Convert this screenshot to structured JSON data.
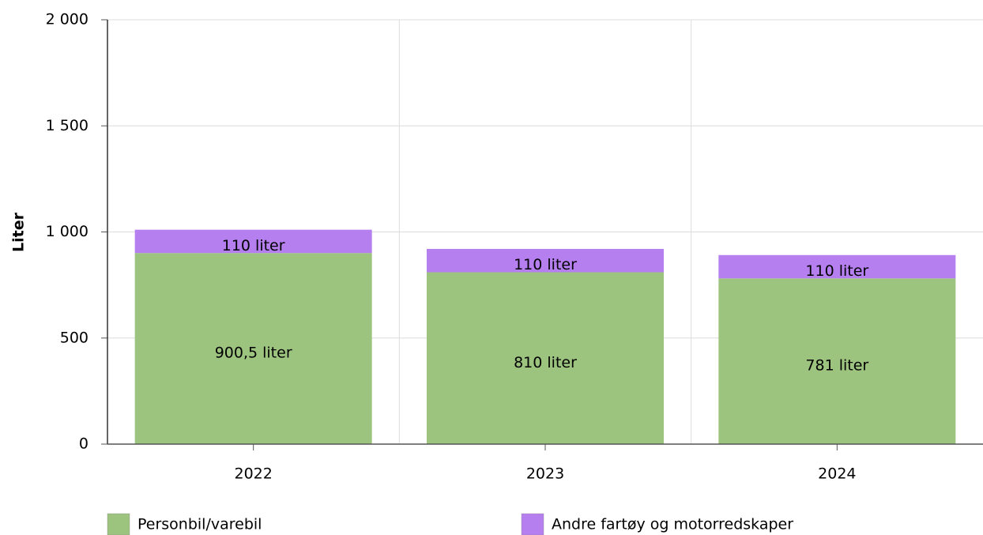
{
  "chart_data": {
    "type": "stacked_bar",
    "y_label": "Liter",
    "categories": [
      "2022",
      "2023",
      "2024"
    ],
    "series": [
      {
        "name": "Personbil/varebil",
        "color": "#9dc47f",
        "values": [
          900.5,
          810,
          781
        ],
        "value_labels": [
          "900,5 liter",
          "810 liter",
          "781 liter"
        ]
      },
      {
        "name": "Andre fartøy og motorredskaper",
        "color": "#b57ff0",
        "values": [
          110,
          110,
          110
        ],
        "value_labels": [
          "110 liter",
          "110 liter",
          "110 liter"
        ]
      }
    ],
    "ylim": [
      0,
      2000
    ],
    "yticks": [
      0,
      500,
      {
        "value": 1000,
        "label": "1 000"
      },
      {
        "value": 1500,
        "label": "1 500"
      },
      {
        "value": 2000,
        "label": "2 000"
      }
    ],
    "grid": true,
    "legend": "bottom"
  }
}
